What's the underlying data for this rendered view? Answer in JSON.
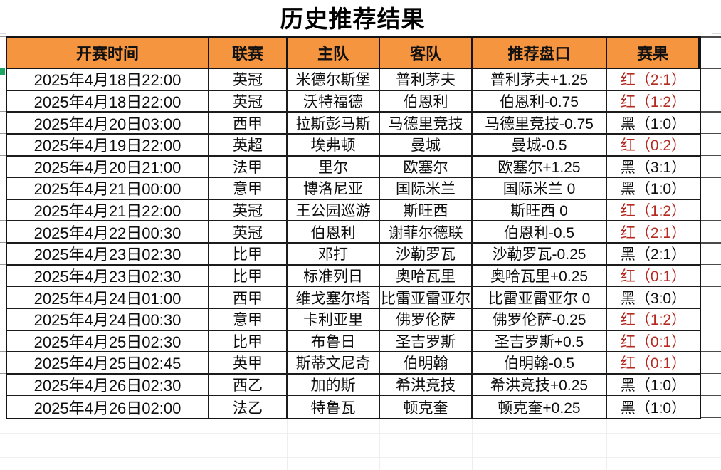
{
  "title": "历史推荐结果",
  "colors": {
    "header_bg": "#F6953F",
    "red_result": "#b52a20",
    "black_result": "#0d0d0d",
    "accent_green_mark": "#1fa565"
  },
  "table": {
    "headers": [
      "开赛时间",
      "联赛",
      "主队",
      "客队",
      "推荐盘口",
      "赛果"
    ],
    "rows": [
      {
        "time": "2025年4月18日22:00",
        "league": "英冠",
        "home": "米德尔斯堡",
        "away": "普利茅夫",
        "handicap": "普利茅夫+1.25",
        "result": "红（2:1）",
        "hit": "red"
      },
      {
        "time": "2025年4月18日22:00",
        "league": "英冠",
        "home": "沃特福德",
        "away": "伯恩利",
        "handicap": "伯恩利-0.75",
        "result": "红（1:2）",
        "hit": "red"
      },
      {
        "time": "2025年4月20日03:00",
        "league": "西甲",
        "home": "拉斯彭马斯",
        "away": "马德里竞技",
        "handicap": "马德里竞技-0.75",
        "result": "黑（1:0）",
        "hit": "black"
      },
      {
        "time": "2025年4月19日22:00",
        "league": "英超",
        "home": "埃弗顿",
        "away": "曼城",
        "handicap": "曼城-0.5",
        "result": "红（0:2）",
        "hit": "red"
      },
      {
        "time": "2025年4月20日21:00",
        "league": "法甲",
        "home": "里尔",
        "away": "欧塞尔",
        "handicap": "欧塞尔+1.25",
        "result": "黑（3:1）",
        "hit": "black"
      },
      {
        "time": "2025年4月21日00:00",
        "league": "意甲",
        "home": "博洛尼亚",
        "away": "国际米兰",
        "handicap": "国际米兰 0",
        "result": "黑（1:0）",
        "hit": "black"
      },
      {
        "time": "2025年4月21日22:00",
        "league": "英冠",
        "home": "王公园巡游",
        "away": "斯旺西",
        "handicap": "斯旺西 0",
        "result": "红（1:2）",
        "hit": "red"
      },
      {
        "time": "2025年4月22日00:30",
        "league": "英冠",
        "home": "伯恩利",
        "away": "谢菲尔德联",
        "handicap": "伯恩利-0.5",
        "result": "红（2:1）",
        "hit": "red"
      },
      {
        "time": "2025年4月23日02:30",
        "league": "比甲",
        "home": "邓打",
        "away": "沙勒罗瓦",
        "handicap": "沙勒罗瓦-0.25",
        "result": "黑（2:1）",
        "hit": "black"
      },
      {
        "time": "2025年4月23日02:30",
        "league": "比甲",
        "home": "标准列日",
        "away": "奥哈瓦里",
        "handicap": "奥哈瓦里+0.25",
        "result": "红（0:1）",
        "hit": "red"
      },
      {
        "time": "2025年4月24日01:00",
        "league": "西甲",
        "home": "维戈塞尔塔",
        "away": "比雷亚雷亚尔",
        "handicap": "比雷亚雷亚尔 0",
        "result": "黑（3:0）",
        "hit": "black"
      },
      {
        "time": "2025年4月24日00:30",
        "league": "意甲",
        "home": "卡利亚里",
        "away": "佛罗伦萨",
        "handicap": "佛罗伦萨-0.25",
        "result": "红（1:2）",
        "hit": "red"
      },
      {
        "time": "2025年4月25日02:30",
        "league": "比甲",
        "home": "布鲁日",
        "away": "圣吉罗斯",
        "handicap": "圣吉罗斯+0.5",
        "result": "红（0:1）",
        "hit": "red"
      },
      {
        "time": "2025年4月25日02:45",
        "league": "英甲",
        "home": "斯蒂文尼奇",
        "away": "伯明翰",
        "handicap": "伯明翰-0.5",
        "result": "红（0:1）",
        "hit": "red"
      },
      {
        "time": "2025年4月26日02:30",
        "league": "西乙",
        "home": "加的斯",
        "away": "希洪竞技",
        "handicap": "希洪竞技+0.25",
        "result": "黑（1:0）",
        "hit": "black"
      },
      {
        "time": "2025年4月26日02:00",
        "league": "法乙",
        "home": "特鲁瓦",
        "away": "顿克奎",
        "handicap": "顿克奎+0.25",
        "result": "黑（1:0）",
        "hit": "black"
      }
    ]
  }
}
